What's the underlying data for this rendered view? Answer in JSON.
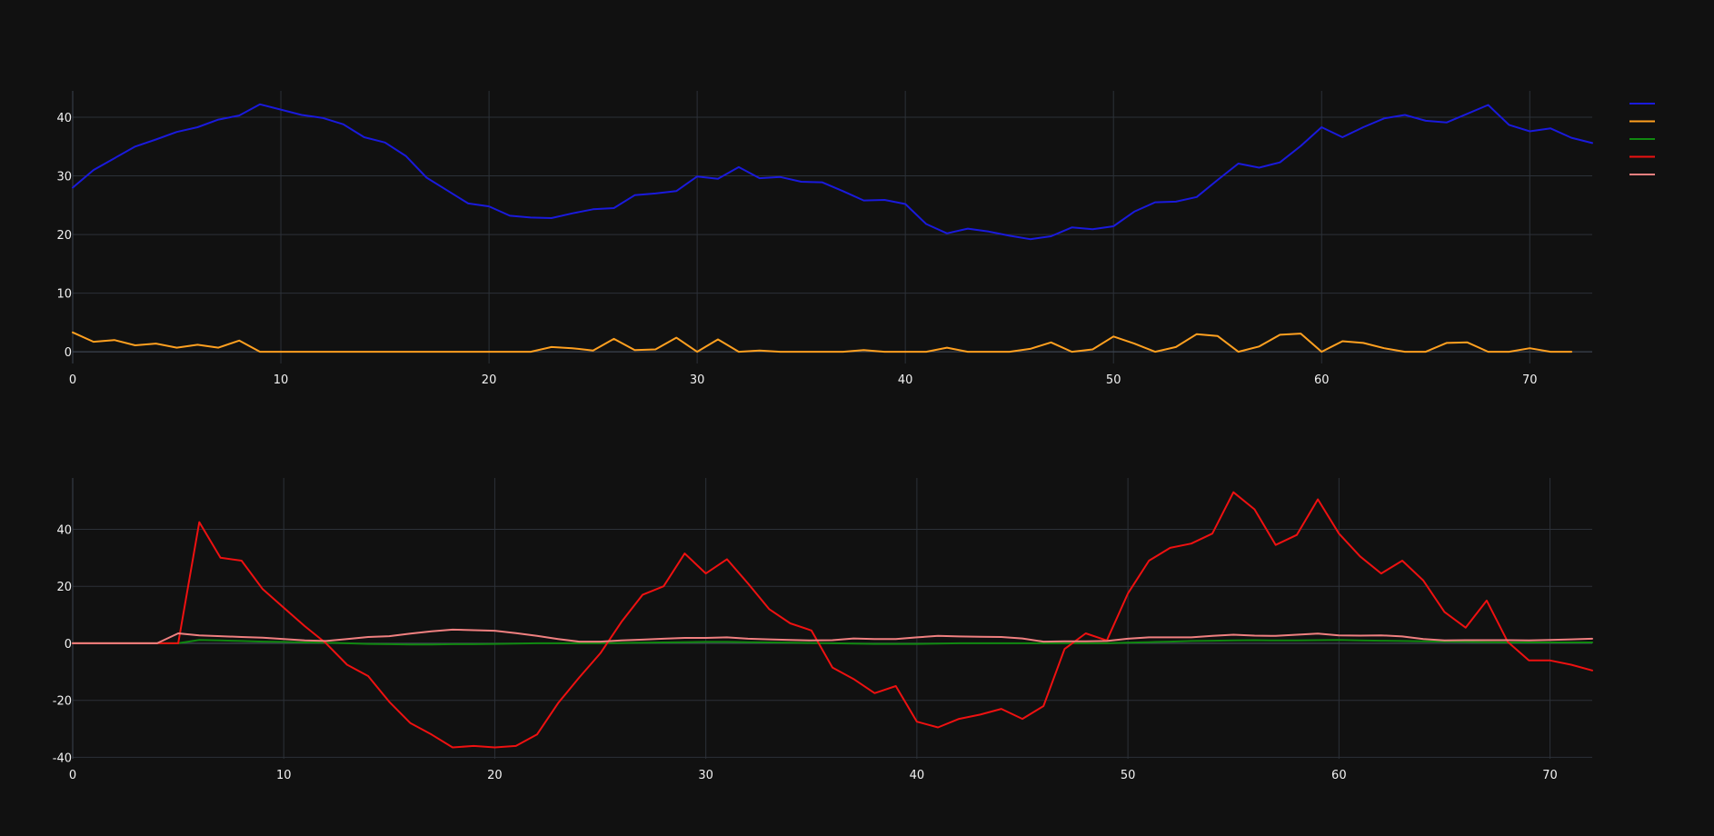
{
  "theme": {
    "background": "#111111",
    "text": "#f2f2f2",
    "grid": "#2c3138"
  },
  "legend": {
    "placement": "top-right",
    "entries": [
      {
        "color": "#1a1adc"
      },
      {
        "color": "#ffa020"
      },
      {
        "color": "#108810"
      },
      {
        "color": "#ee1111"
      },
      {
        "color": "#f08080"
      }
    ]
  },
  "chart_data": [
    {
      "type": "line",
      "xlim": [
        0,
        73
      ],
      "ylim": [
        -2,
        44.5
      ],
      "x_ticks": [
        0,
        10,
        20,
        30,
        40,
        50,
        60,
        70
      ],
      "y_ticks": [
        0,
        10,
        20,
        30,
        40
      ],
      "grid": true,
      "series": [
        {
          "color": "#1a1adc",
          "x_start": 0,
          "values": [
            28,
            31,
            33,
            35,
            36.2,
            37.5,
            38.3,
            39.6,
            40.3,
            42.2,
            41.3,
            40.4,
            39.9,
            38.8,
            36.6,
            35.7,
            33.4,
            29.7,
            27.5,
            25.3,
            24.8,
            23.2,
            22.9,
            22.8,
            23.6,
            24.3,
            24.5,
            26.7,
            27,
            27.4,
            29.9,
            29.5,
            31.5,
            29.6,
            29.8,
            29,
            28.9,
            27.4,
            25.8,
            25.9,
            25.2,
            21.8,
            20.2,
            21,
            20.5,
            19.8,
            19.2,
            19.7,
            21.2,
            20.9,
            21.4,
            23.9,
            25.5,
            25.6,
            26.4,
            29.3,
            32.1,
            31.4,
            32.3,
            35.1,
            38.3,
            36.6,
            38.3,
            39.8,
            40.4,
            39.4,
            39.1,
            40.6,
            42.1,
            38.7,
            37.6,
            38.1,
            36.5,
            35.6
          ]
        },
        {
          "color": "#ffa020",
          "x_start": 0,
          "values": [
            3.3,
            1.7,
            2,
            1.1,
            1.4,
            0.7,
            1.2,
            0.7,
            1.9,
            0,
            0,
            0,
            0,
            0,
            0,
            0,
            0,
            0,
            0,
            0,
            0,
            0,
            0,
            0.8,
            0.6,
            0.2,
            2.2,
            0.3,
            0.4,
            2.4,
            0,
            2.1,
            0,
            0.2,
            0,
            0,
            0,
            0,
            0.3,
            0,
            0,
            0,
            0.7,
            0,
            0,
            0,
            0.5,
            1.6,
            0,
            0.4,
            2.6,
            1.4,
            0,
            0.8,
            3,
            2.7,
            0,
            0.9,
            2.9,
            3.1,
            0,
            1.8,
            1.5,
            0.6,
            0,
            0,
            1.5,
            1.6,
            0,
            0,
            0.6,
            0,
            0
          ]
        }
      ]
    },
    {
      "type": "line",
      "xlim": [
        0,
        72
      ],
      "ylim": [
        -40.5,
        58
      ],
      "x_ticks": [
        0,
        10,
        20,
        30,
        40,
        50,
        60,
        70
      ],
      "y_ticks": [
        -40,
        -20,
        0,
        20,
        40
      ],
      "grid": true,
      "series": [
        {
          "color": "#108810",
          "x_start": 0,
          "values": [
            0,
            0,
            0,
            0,
            0,
            0,
            1.2,
            1,
            0.8,
            0.6,
            0.5,
            0.3,
            0.2,
            0,
            -0.2,
            -0.3,
            -0.4,
            -0.4,
            -0.3,
            -0.3,
            -0.2,
            -0.1,
            0,
            0,
            0,
            0,
            0.1,
            0.2,
            0.3,
            0.4,
            0.5,
            0.5,
            0.4,
            0.3,
            0.2,
            0.1,
            0,
            -0.1,
            -0.2,
            -0.2,
            -0.2,
            -0.1,
            0,
            0,
            0,
            0,
            0,
            0,
            0,
            0,
            0.2,
            0.4,
            0.6,
            0.8,
            0.9,
            1,
            1.1,
            1,
            1,
            1.1,
            1.2,
            1,
            0.9,
            0.8,
            0.7,
            0.6,
            0.5,
            0.4,
            0.3,
            0.3,
            0.3,
            0.3,
            0.3
          ]
        },
        {
          "color": "#ee1111",
          "x_start": 0,
          "values": [
            0,
            0,
            0,
            0,
            0,
            0,
            42.5,
            30,
            29,
            19,
            12.5,
            6,
            0,
            -7.5,
            -11.5,
            -20.5,
            -28,
            -32,
            -36.5,
            -36,
            -36.5,
            -36,
            -32,
            -21,
            -12,
            -3.5,
            7.5,
            17,
            20,
            31.5,
            24.5,
            29.5,
            21,
            12,
            7,
            4.5,
            -8.5,
            -12.5,
            -17.5,
            -15,
            -27.5,
            -29.5,
            -26.5,
            -25,
            -23,
            -26.5,
            -22,
            -2,
            3.5,
            1,
            17.5,
            29,
            33.5,
            35,
            38.5,
            53,
            47,
            34.5,
            38,
            50.5,
            38.5,
            30.5,
            24.5,
            29,
            22,
            11,
            5.5,
            15,
            0.5,
            -6,
            -6,
            -7.5,
            -9.5
          ]
        },
        {
          "color": "#f08080",
          "x_start": 0,
          "values": [
            0,
            0,
            0,
            0,
            0,
            3.5,
            2.8,
            2.5,
            2.2,
            2,
            1.5,
            1,
            0.8,
            1.5,
            2.2,
            2.5,
            3.4,
            4.2,
            4.8,
            4.6,
            4.4,
            3.6,
            2.6,
            1.5,
            0.6,
            0.6,
            1,
            1.3,
            1.6,
            1.9,
            1.9,
            2.1,
            1.6,
            1.4,
            1.2,
            1,
            1.1,
            1.7,
            1.5,
            1.5,
            2.1,
            2.6,
            2.4,
            2.3,
            2.2,
            1.7,
            0.6,
            0.7,
            0.7,
            0.8,
            1.6,
            2.1,
            2.1,
            2.1,
            2.6,
            3,
            2.7,
            2.6,
            3,
            3.4,
            2.8,
            2.7,
            2.8,
            2.4,
            1.5,
            1,
            1.1,
            1.1,
            1.1,
            1,
            1.2,
            1.4,
            1.6
          ]
        }
      ]
    }
  ]
}
